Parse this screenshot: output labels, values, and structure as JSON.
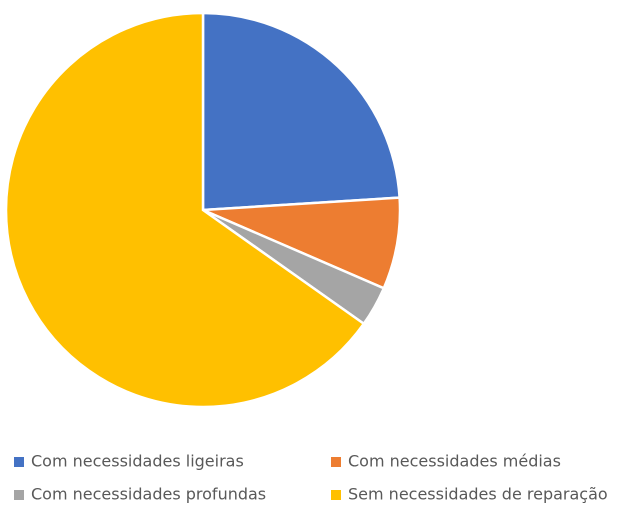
{
  "chart_data": {
    "type": "pie",
    "categories": [
      "Com necessidades ligeiras",
      "Com necessidades médias",
      "Com necessidades profundas",
      "Sem necessidades de reparação"
    ],
    "values": [
      24,
      7.5,
      3.3,
      65.2
    ],
    "colors": [
      "#4472c4",
      "#ed7d31",
      "#a5a5a5",
      "#ffc000"
    ]
  }
}
